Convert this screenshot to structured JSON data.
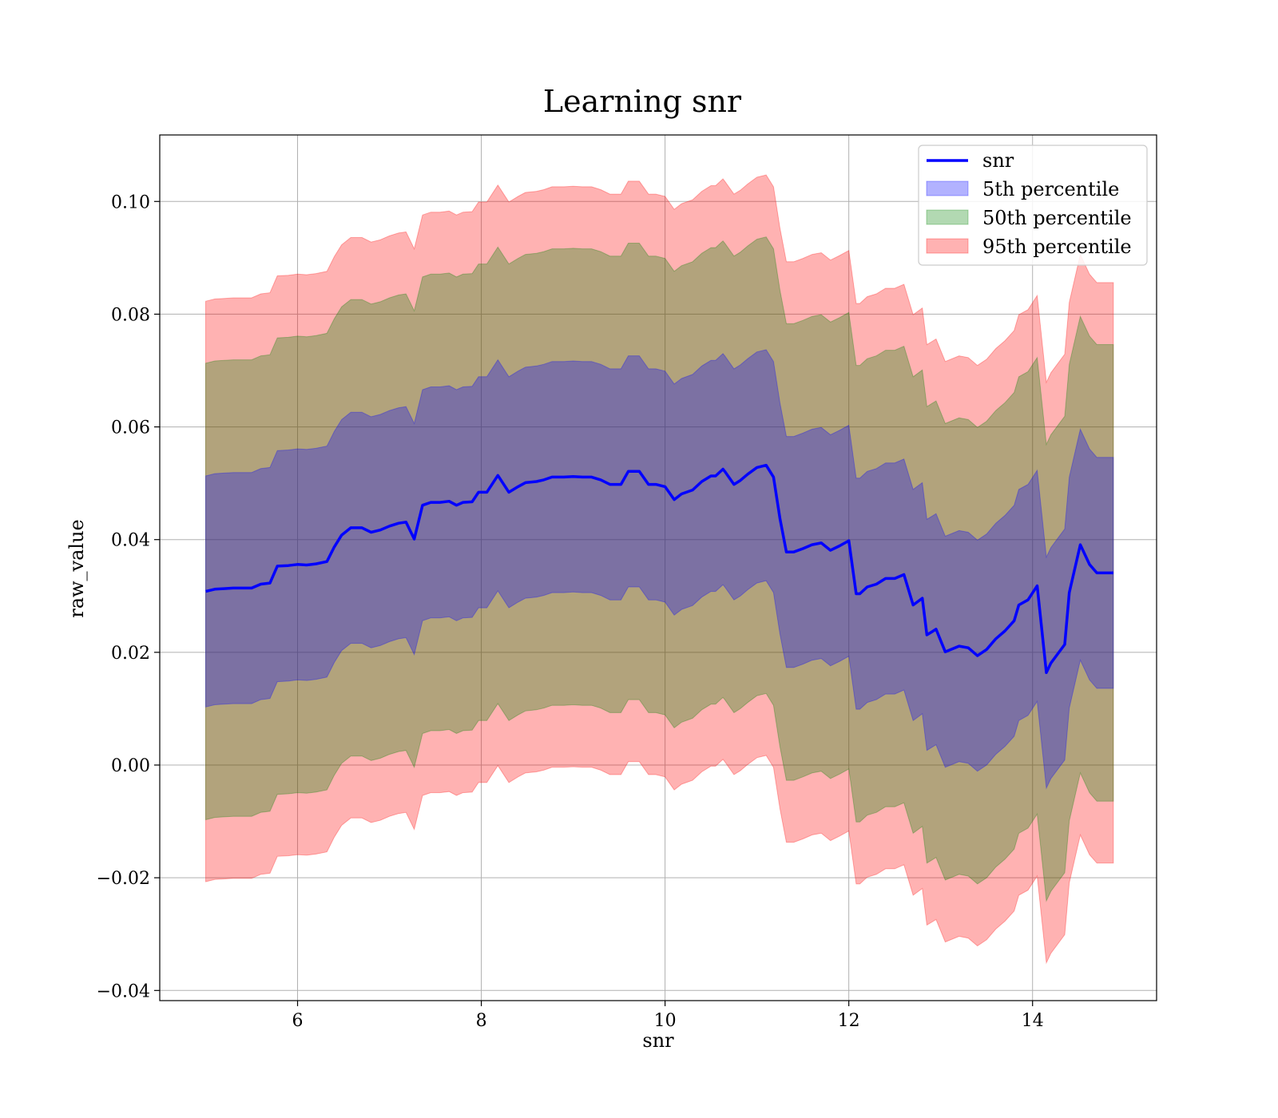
{
  "chart_data": {
    "type": "area",
    "title": "Learning snr",
    "xlabel": "snr",
    "ylabel": "raw_value",
    "xlim": [
      4.5,
      15.35
    ],
    "ylim": [
      -0.0418,
      0.1118
    ],
    "xticks": [
      6,
      8,
      10,
      12,
      14
    ],
    "xtick_labels": [
      "6",
      "8",
      "10",
      "12",
      "14"
    ],
    "yticks": [
      -0.04,
      -0.02,
      0.0,
      0.02,
      0.04,
      0.06,
      0.08,
      0.1
    ],
    "ytick_labels": [
      "−0.04",
      "−0.02",
      "0.00",
      "0.02",
      "0.04",
      "0.06",
      "0.08",
      "0.10"
    ],
    "grid": true,
    "legend_position": "upper right",
    "colors": {
      "line": "#0000ff",
      "band_5th": "#0000ff",
      "band_50th": "#008000",
      "band_95th": "#ff0000"
    },
    "series": [
      {
        "name": "snr",
        "kind": "line"
      },
      {
        "name": "5th percentile",
        "kind": "band",
        "half_width": 0.0205
      },
      {
        "name": "50th percentile",
        "kind": "band",
        "half_width": 0.0405
      },
      {
        "name": "95th percentile",
        "kind": "band",
        "half_width": 0.0515
      }
    ],
    "x": [
      5.0,
      5.1,
      5.2,
      5.3,
      5.4,
      5.5,
      5.6,
      5.7,
      5.78,
      5.9,
      6.0,
      6.1,
      6.2,
      6.32,
      6.4,
      6.48,
      6.58,
      6.7,
      6.8,
      6.9,
      7.0,
      7.1,
      7.18,
      7.27,
      7.36,
      7.45,
      7.55,
      7.65,
      7.73,
      7.8,
      7.9,
      7.97,
      8.06,
      8.18,
      8.3,
      8.4,
      8.48,
      8.6,
      8.68,
      8.77,
      8.9,
      9.0,
      9.1,
      9.2,
      9.3,
      9.4,
      9.52,
      9.6,
      9.72,
      9.82,
      9.9,
      10.0,
      10.1,
      10.18,
      10.3,
      10.4,
      10.5,
      10.55,
      10.63,
      10.65,
      10.75,
      10.82,
      10.9,
      11.0,
      11.1,
      11.18,
      11.25,
      11.32,
      11.4,
      11.5,
      11.6,
      11.7,
      11.8,
      11.9,
      12.0,
      12.08,
      12.12,
      12.2,
      12.3,
      12.4,
      12.5,
      12.6,
      12.7,
      12.8,
      12.85,
      12.9,
      12.95,
      13.05,
      13.2,
      13.3,
      13.4,
      13.5,
      13.6,
      13.7,
      13.8,
      13.85,
      13.95,
      14.05,
      14.15,
      14.2,
      14.35,
      14.4,
      14.52,
      14.62,
      14.7,
      14.88
    ],
    "y": [
      0.0308,
      0.0312,
      0.0313,
      0.0314,
      0.0314,
      0.0314,
      0.0321,
      0.0323,
      0.0353,
      0.0354,
      0.0356,
      0.0355,
      0.0357,
      0.0361,
      0.0387,
      0.0408,
      0.0421,
      0.0421,
      0.0413,
      0.0417,
      0.0424,
      0.0429,
      0.0431,
      0.0401,
      0.0461,
      0.0466,
      0.0466,
      0.0468,
      0.0461,
      0.0466,
      0.0467,
      0.0484,
      0.0484,
      0.0514,
      0.0484,
      0.0494,
      0.0501,
      0.0503,
      0.0506,
      0.0511,
      0.0511,
      0.0512,
      0.0511,
      0.0511,
      0.0506,
      0.0498,
      0.0498,
      0.0521,
      0.0521,
      0.0498,
      0.0498,
      0.0494,
      0.0471,
      0.0481,
      0.0488,
      0.0503,
      0.0513,
      0.0513,
      0.0525,
      0.0521,
      0.0498,
      0.0505,
      0.0516,
      0.0528,
      0.0532,
      0.0511,
      0.0438,
      0.0378,
      0.0378,
      0.0384,
      0.0391,
      0.0394,
      0.0381,
      0.0389,
      0.0398,
      0.0304,
      0.0304,
      0.0316,
      0.0321,
      0.0331,
      0.0331,
      0.0338,
      0.0284,
      0.0296,
      0.0231,
      0.0236,
      0.0241,
      0.0201,
      0.0211,
      0.0208,
      0.0194,
      0.0205,
      0.0224,
      0.0238,
      0.0256,
      0.0284,
      0.0293,
      0.0318,
      0.0164,
      0.0181,
      0.0214,
      0.0306,
      0.0391,
      0.0356,
      0.0341,
      0.0341
    ]
  }
}
